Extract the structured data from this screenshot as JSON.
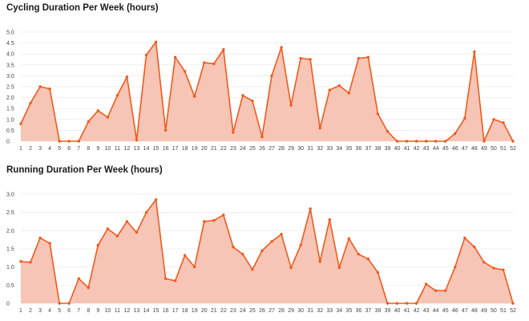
{
  "chart_data": [
    {
      "type": "area",
      "title": "Cycling Duration Per Week (hours)",
      "xlabel": "",
      "ylabel": "",
      "x": [
        1,
        2,
        3,
        4,
        5,
        6,
        7,
        8,
        9,
        10,
        11,
        12,
        13,
        14,
        15,
        16,
        17,
        18,
        19,
        20,
        21,
        22,
        23,
        24,
        25,
        26,
        27,
        28,
        29,
        30,
        31,
        32,
        33,
        34,
        35,
        36,
        37,
        38,
        39,
        40,
        41,
        42,
        43,
        44,
        45,
        46,
        47,
        48,
        49,
        50,
        51,
        52
      ],
      "yticks": [
        0,
        0.5,
        1.0,
        1.5,
        2.0,
        2.5,
        3.0,
        3.5,
        4.0,
        4.5,
        5.0
      ],
      "ytick_labels": [
        "0",
        "0.5",
        "1.0",
        "1.5",
        "2.0",
        "2.5",
        "3.0",
        "3.5",
        "4.0",
        "4.5",
        "5.0"
      ],
      "ylim": [
        0,
        5.0
      ],
      "grid": true,
      "color": "#f05a1e",
      "fill": "#f7c5b5",
      "values": [
        0.8,
        1.75,
        2.5,
        2.4,
        0.0,
        0.0,
        0.0,
        0.9,
        1.4,
        1.1,
        2.1,
        2.95,
        0.05,
        3.95,
        4.55,
        0.5,
        3.85,
        3.2,
        2.05,
        3.6,
        3.55,
        4.2,
        0.4,
        2.1,
        1.85,
        0.2,
        3.0,
        4.3,
        1.65,
        3.8,
        3.75,
        0.6,
        2.35,
        2.55,
        2.2,
        3.8,
        3.85,
        1.25,
        0.45,
        0.0,
        0.0,
        0.0,
        0.0,
        0.0,
        0.0,
        0.35,
        1.05,
        4.1,
        0.0,
        1.0,
        0.85,
        0.0
      ]
    },
    {
      "type": "area",
      "title": "Running Duration Per Week (hours)",
      "xlabel": "",
      "ylabel": "",
      "x": [
        1,
        2,
        3,
        4,
        5,
        6,
        7,
        8,
        9,
        10,
        11,
        12,
        13,
        14,
        15,
        16,
        17,
        18,
        19,
        20,
        21,
        22,
        23,
        24,
        25,
        26,
        27,
        28,
        29,
        30,
        31,
        32,
        33,
        34,
        35,
        36,
        37,
        38,
        39,
        40,
        41,
        42,
        43,
        44,
        45,
        46,
        47,
        48,
        49,
        50,
        51,
        52
      ],
      "yticks": [
        0,
        0.5,
        1.0,
        1.5,
        2.0,
        2.5,
        3.0
      ],
      "ytick_labels": [
        "0",
        "0.5",
        "1.0",
        "1.5",
        "2.0",
        "2.5",
        "3.0"
      ],
      "ylim": [
        0,
        3.0
      ],
      "grid": true,
      "color": "#f05a1e",
      "fill": "#f7c5b5",
      "values": [
        1.15,
        1.13,
        1.8,
        1.65,
        0.0,
        0.0,
        0.68,
        0.43,
        1.6,
        2.05,
        1.85,
        2.25,
        1.95,
        2.5,
        2.85,
        0.68,
        0.62,
        1.32,
        1.0,
        2.25,
        2.28,
        2.43,
        1.55,
        1.35,
        0.93,
        1.45,
        1.7,
        1.9,
        0.98,
        1.6,
        2.6,
        1.15,
        2.3,
        0.98,
        1.78,
        1.35,
        1.22,
        0.85,
        0.0,
        0.0,
        0.0,
        0.0,
        0.53,
        0.35,
        0.35,
        1.0,
        1.8,
        1.55,
        1.13,
        0.97,
        0.92,
        0.0
      ]
    }
  ]
}
